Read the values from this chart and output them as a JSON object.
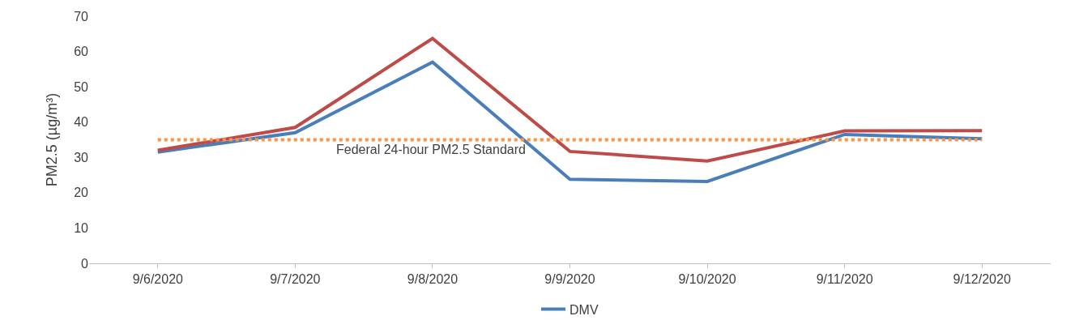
{
  "chart_data": {
    "type": "line",
    "ylabel": "PM2.5 (µg/m³)",
    "categories": [
      "9/6/2020",
      "9/7/2020",
      "9/8/2020",
      "9/9/2020",
      "9/10/2020",
      "9/11/2020",
      "9/12/2020"
    ],
    "series": [
      {
        "name": "DMV",
        "color": "#4a7ebb",
        "values": [
          31.5,
          37,
          57,
          23.8,
          23.2,
          36.5,
          35.3
        ]
      },
      {
        "color": "#be4b48",
        "values": [
          32,
          38.5,
          63.7,
          31.7,
          29,
          37.5,
          37.6
        ]
      }
    ],
    "ylim": [
      0,
      70
    ],
    "yticks": [
      0,
      10,
      20,
      30,
      40,
      50,
      60,
      70
    ],
    "ref_lines": [
      {
        "axis": "y",
        "value": 35,
        "label": "Federal 24-hour PM2.5 Standard",
        "color": "#f79646",
        "line_style": "dotted"
      }
    ],
    "legend": "bottom",
    "marker": "none",
    "line_style": "solid"
  }
}
